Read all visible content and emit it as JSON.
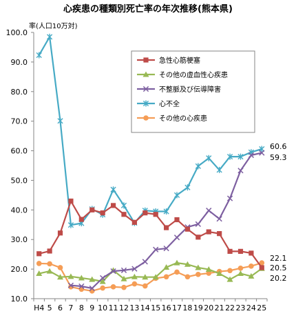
{
  "chart_data": {
    "type": "line",
    "title": "心疾患の種類別死亡率の年次推移(熊本県)",
    "ylabel": "率(人口10万対)",
    "xlabel": "",
    "ylim": [
      10,
      100
    ],
    "yticks": [
      "10.0",
      "20.0",
      "30.0",
      "40.0",
      "50.0",
      "60.0",
      "70.0",
      "80.0",
      "90.0",
      "100.0"
    ],
    "categories": [
      "H4",
      "5",
      "6",
      "7",
      "8",
      "9",
      "10",
      "11",
      "12",
      "13",
      "14",
      "15",
      "16",
      "17",
      "18",
      "19",
      "20",
      "21",
      "22",
      "23",
      "24",
      "25"
    ],
    "grid": false,
    "legend_position": "top-center",
    "series": [
      {
        "name": "急性心筋梗塞",
        "color": "#be4b48",
        "marker": "square",
        "values": [
          25.2,
          26.1,
          32.2,
          43.0,
          36.8,
          40.0,
          39.0,
          41.5,
          38.5,
          35.8,
          39.0,
          38.5,
          34.0,
          36.7,
          33.5,
          30.8,
          32.6,
          32.0,
          26.0,
          26.0,
          25.4,
          20.5
        ]
      },
      {
        "name": "その他の虚血性心疾患",
        "color": "#98b954",
        "marker": "triangle",
        "values": [
          18.5,
          19.3,
          17.3,
          17.5,
          17.0,
          16.5,
          15.8,
          19.6,
          16.7,
          17.4,
          17.3,
          17.3,
          20.6,
          22.1,
          21.6,
          20.5,
          19.9,
          18.5,
          16.5,
          18.5,
          17.6,
          20.2
        ]
      },
      {
        "name": "不整脈及び伝導障害",
        "color": "#7d5fa0",
        "marker": "x",
        "values": [
          null,
          null,
          null,
          14.5,
          14.2,
          13.5,
          17.0,
          19.3,
          19.6,
          20.1,
          22.5,
          26.6,
          27.0,
          30.7,
          34.2,
          35.2,
          39.8,
          37.0,
          43.9,
          53.3,
          58.5,
          59.3
        ]
      },
      {
        "name": "心不全",
        "color": "#46aac5",
        "marker": "asterisk",
        "values": [
          92.3,
          98.5,
          70.1,
          34.9,
          35.5,
          40.3,
          38.4,
          46.9,
          41.5,
          35.6,
          39.8,
          39.5,
          39.5,
          45.0,
          47.6,
          54.8,
          57.5,
          53.5,
          58.0,
          58.0,
          59.5,
          60.6
        ]
      },
      {
        "name": "その他の心疾患",
        "color": "#f59d56",
        "marker": "circle",
        "values": [
          21.9,
          21.8,
          20.5,
          14.0,
          13.2,
          12.6,
          13.6,
          14.0,
          13.8,
          15.0,
          14.3,
          16.9,
          17.4,
          19.0,
          17.4,
          18.2,
          18.6,
          19.2,
          19.5,
          20.3,
          21.0,
          22.1
        ]
      }
    ],
    "end_labels": [
      "60.6",
      "59.3",
      "22.1",
      "20.5",
      "20.2"
    ]
  }
}
